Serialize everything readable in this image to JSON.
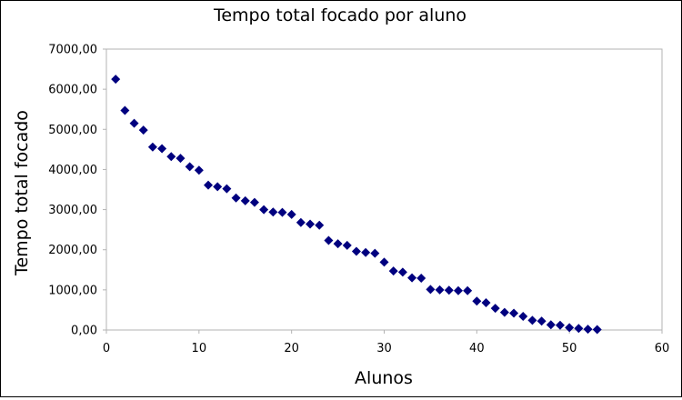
{
  "chart_data": {
    "type": "scatter",
    "title": "Tempo total focado por aluno",
    "xlabel": "Alunos",
    "ylabel": "Tempo total focado",
    "xlim": [
      0,
      60
    ],
    "ylim": [
      0,
      7000
    ],
    "x_ticks": [
      "0",
      "10",
      "20",
      "30",
      "40",
      "50",
      "60"
    ],
    "y_ticks": [
      "0,00",
      "1000,00",
      "2000,00",
      "3000,00",
      "4000,00",
      "5000,00",
      "6000,00",
      "7000,00"
    ],
    "x_tick_values": [
      0,
      10,
      20,
      30,
      40,
      50,
      60
    ],
    "y_tick_values": [
      0,
      1000,
      2000,
      3000,
      4000,
      5000,
      6000,
      7000
    ],
    "grid": false,
    "marker": "diamond",
    "series": [
      {
        "color": "#00007f",
        "x": [
          1,
          2,
          3,
          4,
          5,
          6,
          7,
          8,
          9,
          10,
          11,
          12,
          13,
          14,
          15,
          16,
          17,
          18,
          19,
          20,
          21,
          22,
          23,
          24,
          25,
          26,
          27,
          28,
          29,
          30,
          31,
          32,
          33,
          34,
          35,
          36,
          37,
          38,
          39,
          40,
          41,
          42,
          43,
          44,
          45,
          46,
          47,
          48,
          49,
          50,
          51,
          52,
          53
        ],
        "y": [
          6250,
          5470,
          5150,
          4980,
          4560,
          4520,
          4320,
          4280,
          4070,
          3980,
          3610,
          3570,
          3520,
          3290,
          3220,
          3180,
          3000,
          2940,
          2930,
          2880,
          2680,
          2640,
          2610,
          2230,
          2150,
          2110,
          1960,
          1930,
          1910,
          1690,
          1470,
          1440,
          1300,
          1290,
          1010,
          1000,
          990,
          980,
          980,
          720,
          680,
          540,
          440,
          420,
          340,
          240,
          220,
          130,
          120,
          60,
          40,
          20,
          10
        ]
      }
    ]
  }
}
